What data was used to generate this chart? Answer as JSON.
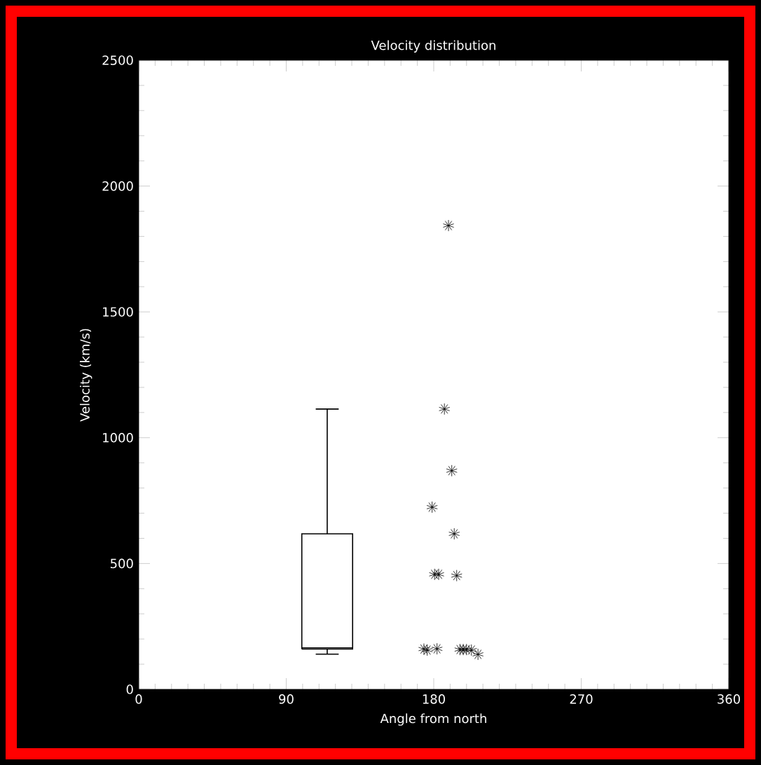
{
  "chart_data": {
    "type": "box",
    "title": "Velocity distribution",
    "xlabel": "Angle from north",
    "ylabel": "Velocity (km/s)",
    "xlim": [
      0,
      360
    ],
    "xticks": [
      0,
      90,
      180,
      270,
      360
    ],
    "ylim": [
      0,
      2500
    ],
    "yticks": [
      0,
      500,
      1000,
      1500,
      2000,
      2500
    ],
    "series": [
      {
        "type": "box",
        "color": "#000000",
        "x": [
          115
        ],
        "boxes": [
          {
            "low": 140,
            "q1": 160,
            "median": 165,
            "q3": 618,
            "high": 1114
          }
        ]
      },
      {
        "type": "scatter",
        "color": "#000000",
        "x": [
          189,
          186.5,
          191,
          179,
          192.5,
          180.5,
          183,
          194,
          174,
          176,
          182,
          196,
          198,
          200,
          203,
          207
        ],
        "values": [
          1843,
          1114,
          869,
          724,
          618,
          457,
          457,
          452,
          160,
          156,
          161,
          158,
          158,
          158,
          156,
          139
        ]
      }
    ]
  }
}
